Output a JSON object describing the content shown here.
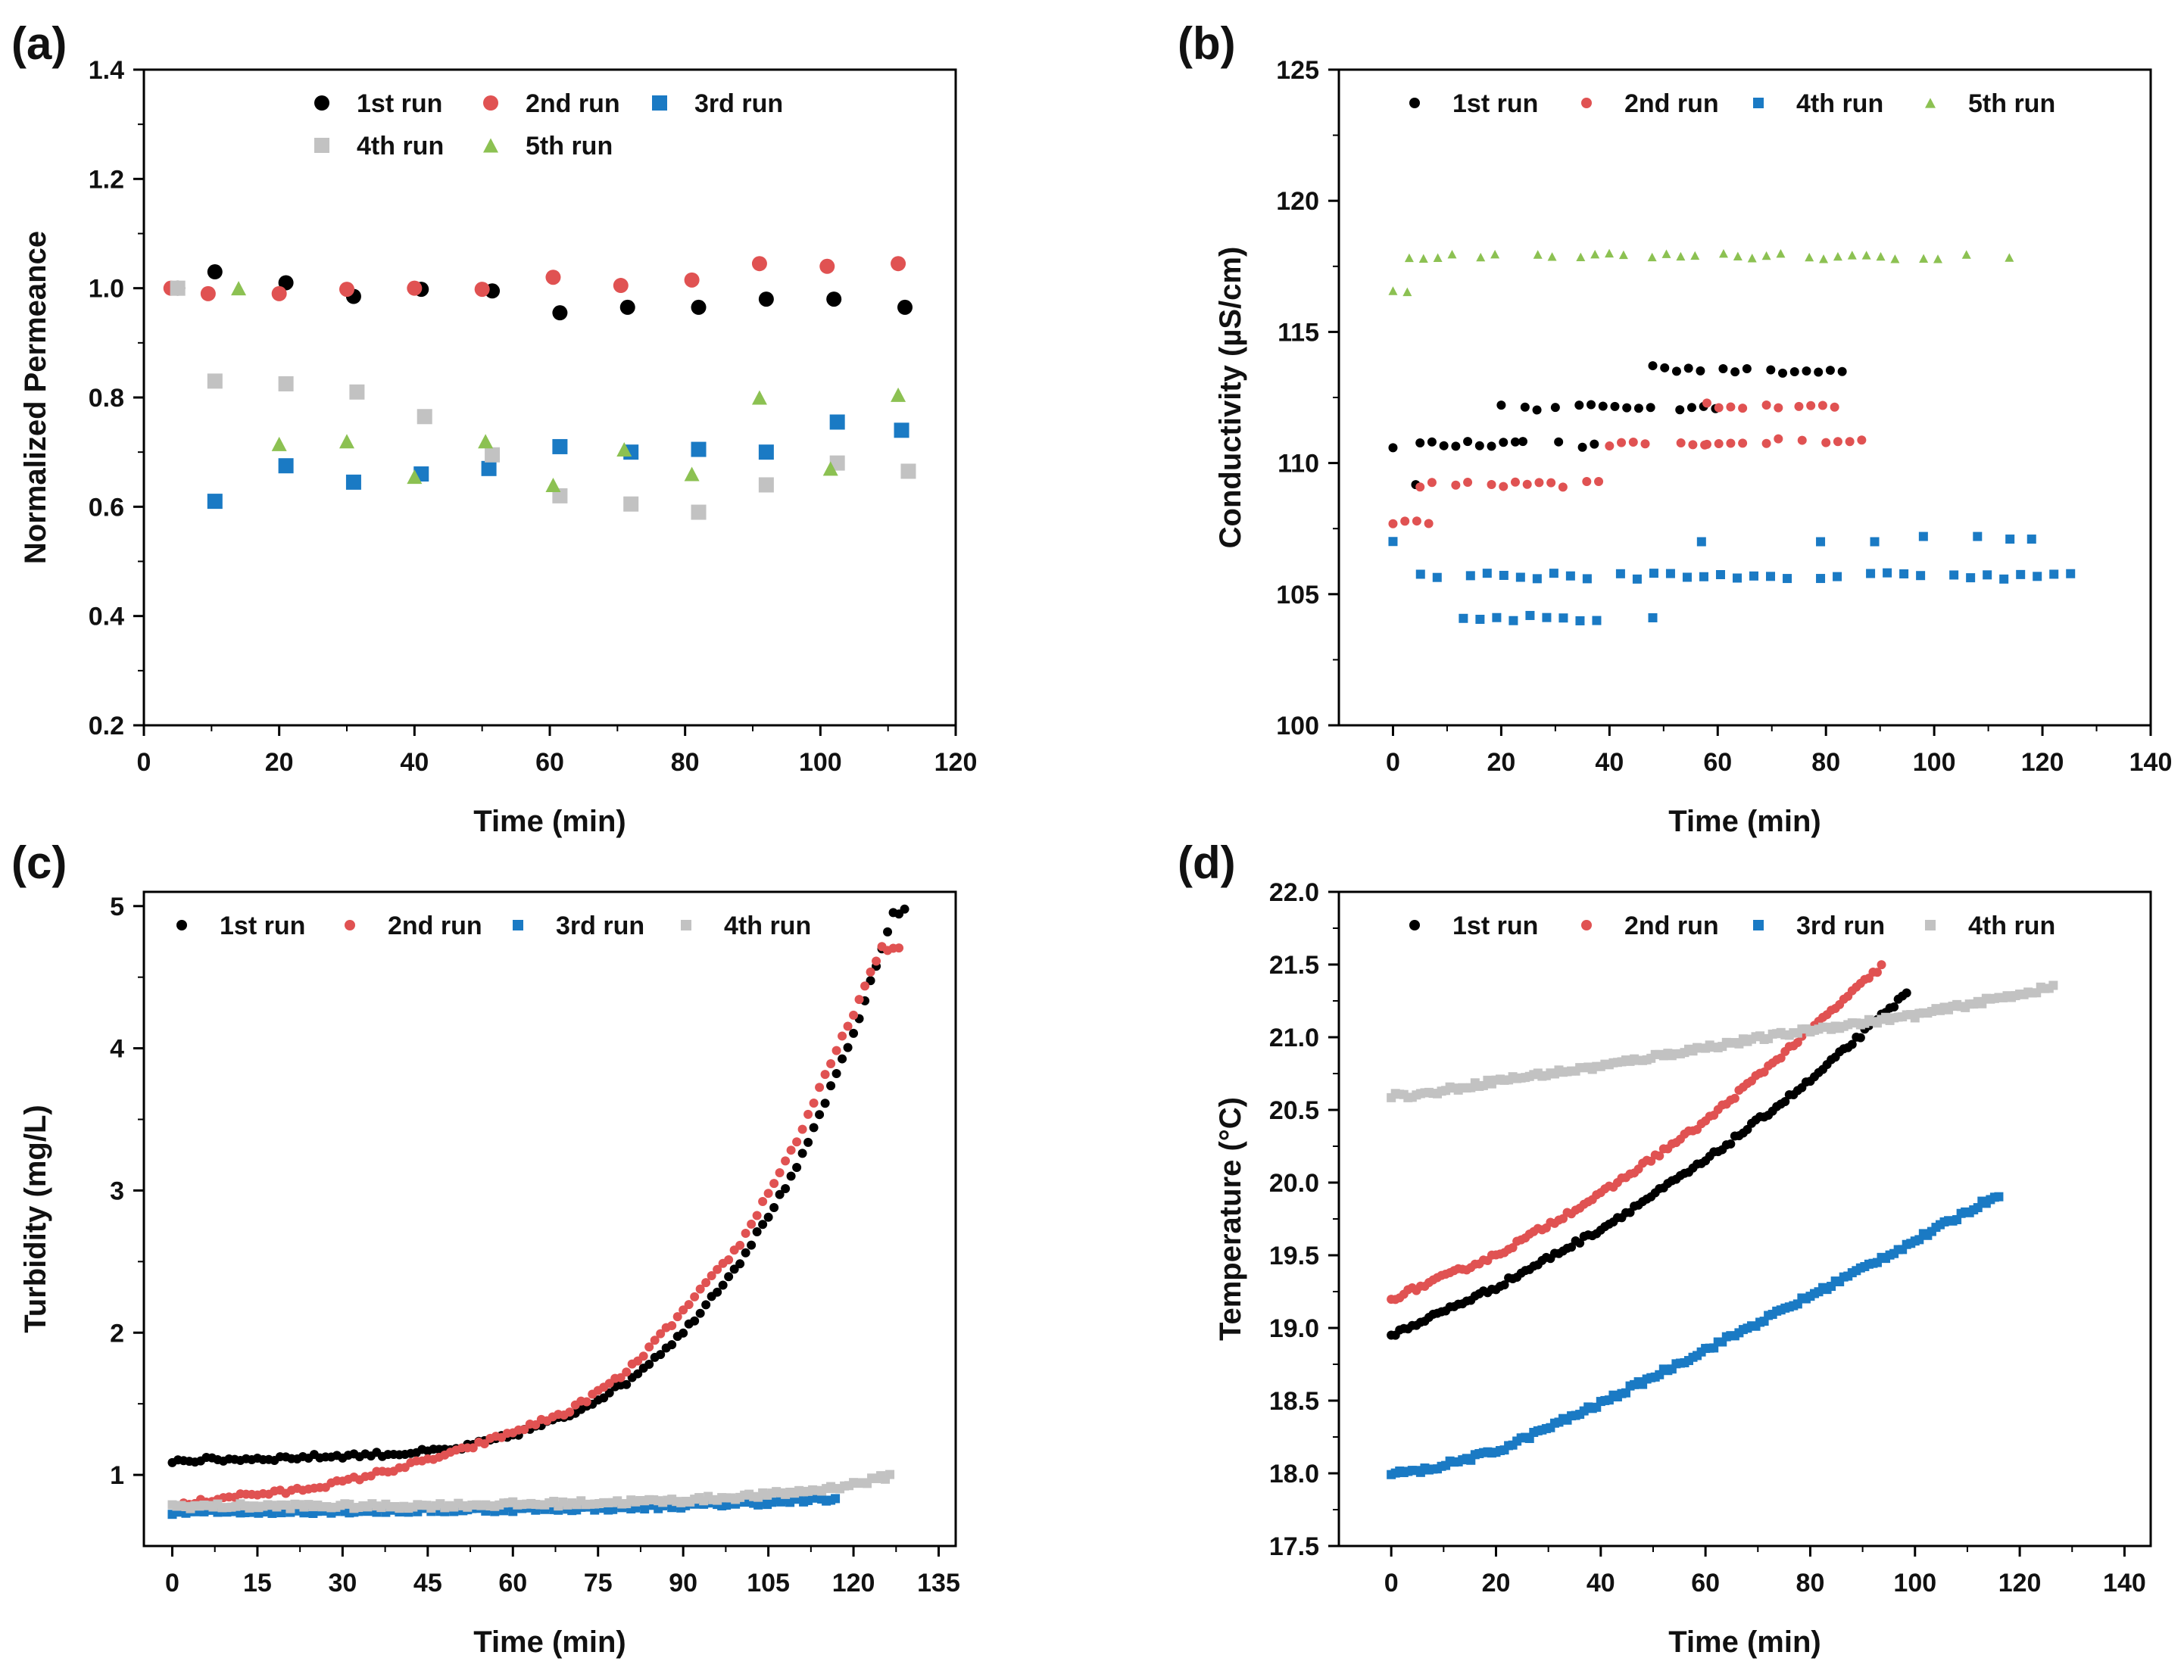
{
  "colors": {
    "black": "#000000",
    "red": "#e05252",
    "blue": "#1a7ac4",
    "gray": "#c2c2c2",
    "green": "#8cc152"
  },
  "chart_data": [
    {
      "id": "a",
      "panel_label": "(a)",
      "type": "scatter",
      "xlabel": "Time (min)",
      "ylabel": "Normalized Permeance",
      "xlim": [
        0,
        120
      ],
      "ylim": [
        0.2,
        1.4
      ],
      "xticks": [
        0,
        20,
        40,
        60,
        80,
        100,
        120
      ],
      "yticks": [
        0.2,
        0.4,
        0.6,
        0.8,
        1.0,
        1.2,
        1.4
      ],
      "ytick_labels": [
        "0.2",
        "0.4",
        "0.6",
        "0.8",
        "1.0",
        "1.2",
        "1.4"
      ],
      "legend": {
        "placement": "top-center",
        "columns": 3
      },
      "series": [
        {
          "name": "1st run",
          "color": "#000000",
          "marker": "circle",
          "x": [
            5,
            10.5,
            21,
            31,
            41,
            51.5,
            61.5,
            71.5,
            82,
            92,
            102,
            112.5
          ],
          "y": [
            1.0,
            1.03,
            1.01,
            0.985,
            0.998,
            0.995,
            0.955,
            0.965,
            0.965,
            0.98,
            0.98,
            0.965
          ]
        },
        {
          "name": "2nd run",
          "color": "#e05252",
          "marker": "circle",
          "x": [
            4,
            9.5,
            20,
            30,
            40,
            50,
            60.5,
            70.5,
            81,
            91,
            101,
            111.5
          ],
          "y": [
            1.0,
            0.99,
            0.99,
            0.998,
            1.0,
            0.998,
            1.02,
            1.005,
            1.015,
            1.045,
            1.04,
            1.045
          ]
        },
        {
          "name": "3rd run",
          "color": "#1a7ac4",
          "marker": "square",
          "x": [
            10.5,
            21,
            31,
            41,
            51,
            61.5,
            72,
            82,
            92,
            102.5,
            112
          ],
          "y": [
            0.61,
            0.675,
            0.645,
            0.66,
            0.67,
            0.71,
            0.7,
            0.705,
            0.7,
            0.755,
            0.74
          ]
        },
        {
          "name": "4th run",
          "color": "#c2c2c2",
          "marker": "square",
          "x": [
            5,
            10.5,
            21,
            31.5,
            41.5,
            51.5,
            61.5,
            72,
            82,
            92,
            102.5,
            113
          ],
          "y": [
            1.0,
            0.83,
            0.825,
            0.81,
            0.765,
            0.695,
            0.62,
            0.605,
            0.59,
            0.64,
            0.68,
            0.665
          ]
        },
        {
          "name": "5th run",
          "color": "#8cc152",
          "marker": "triangle",
          "x": [
            14,
            20,
            30,
            40,
            50.5,
            60.5,
            71,
            81,
            91,
            101.5,
            111.5
          ],
          "y": [
            1.0,
            0.715,
            0.72,
            0.655,
            0.72,
            0.64,
            0.705,
            0.66,
            0.8,
            0.67,
            0.805
          ]
        }
      ]
    },
    {
      "id": "b",
      "panel_label": "(b)",
      "type": "scatter",
      "xlabel": "Time (min)",
      "ylabel": "Conductivity (µS/cm)",
      "xlim": [
        -10,
        140
      ],
      "ylim": [
        100,
        125
      ],
      "xticks": [
        0,
        20,
        40,
        60,
        80,
        100,
        120,
        140
      ],
      "yticks": [
        100,
        105,
        110,
        115,
        120,
        125
      ],
      "ytick_labels": [
        "100",
        "105",
        "110",
        "115",
        "120",
        "125"
      ],
      "legend": {
        "placement": "top-center",
        "columns": 4
      },
      "series": [
        {
          "name": "1st run",
          "color": "#000000",
          "marker": "circle",
          "generator": "segments",
          "segments": [
            [
              0,
              2,
              110.5
            ],
            [
              2,
              5,
              109.3
            ],
            [
              5,
              24,
              110.7
            ],
            [
              20,
              30,
              112.1
            ],
            [
              24,
              38,
              110.7
            ],
            [
              30,
              48,
              112.2
            ],
            [
              48,
              58,
              113.6
            ],
            [
              53,
              61,
              112.1
            ],
            [
              61,
              85,
              113.5
            ]
          ],
          "step": 1.0
        },
        {
          "name": "2nd run",
          "color": "#e05252",
          "marker": "circle",
          "generator": "segments",
          "segments": [
            [
              0,
              7,
              107.8
            ],
            [
              5,
              40,
              109.2
            ],
            [
              40,
              58,
              110.7
            ],
            [
              58,
              72,
              112.2
            ],
            [
              58,
              87,
              110.8
            ],
            [
              75,
              82,
              112.1
            ]
          ],
          "step": 1.0
        },
        {
          "name": "4th run",
          "color": "#1a7ac4",
          "marker": "square",
          "generator": "segments",
          "segments": [
            [
              0,
              3,
              107.0
            ],
            [
              2,
              127,
              105.7
            ],
            [
              13,
              40,
              104.1
            ]
          ],
          "step": 1.4,
          "extra": [
            [
              48,
              104.1
            ],
            [
              57,
              107.0
            ],
            [
              79,
              107.0
            ],
            [
              89,
              107.0
            ],
            [
              98,
              107.2
            ],
            [
              108,
              107.2
            ],
            [
              114,
              107.1
            ],
            [
              118,
              107.1
            ]
          ]
        },
        {
          "name": "5th run",
          "color": "#8cc152",
          "marker": "triangle",
          "generator": "segments",
          "segments": [
            [
              0,
              3,
              116.5
            ],
            [
              3,
              114,
              117.9
            ]
          ],
          "step": 1.2
        }
      ]
    },
    {
      "id": "c",
      "panel_label": "(c)",
      "type": "scatter",
      "xlabel": "Time (min)",
      "ylabel": "Turbidity (mg/L)",
      "xlim": [
        -5,
        138
      ],
      "ylim": [
        0.5,
        5.1
      ],
      "xticks": [
        0,
        15,
        30,
        45,
        60,
        75,
        90,
        105,
        120,
        135
      ],
      "yticks": [
        1,
        2,
        3,
        4,
        5
      ],
      "ytick_labels": [
        "1",
        "2",
        "3",
        "4",
        "5"
      ],
      "legend": {
        "placement": "top-center",
        "columns": 4
      },
      "series": [
        {
          "name": "1st run",
          "color": "#000000",
          "marker": "circle",
          "generator": "curve",
          "x_range": [
            0,
            129
          ],
          "step": 1.0,
          "anchors": [
            [
              0,
              1.1
            ],
            [
              20,
              1.12
            ],
            [
              40,
              1.15
            ],
            [
              50,
              1.18
            ],
            [
              60,
              1.28
            ],
            [
              70,
              1.42
            ],
            [
              80,
              1.65
            ],
            [
              90,
              2.0
            ],
            [
              100,
              2.5
            ],
            [
              110,
              3.15
            ],
            [
              120,
              4.1
            ],
            [
              125,
              4.7
            ],
            [
              127,
              4.95
            ],
            [
              129,
              4.97
            ]
          ]
        },
        {
          "name": "2nd run",
          "color": "#e05252",
          "marker": "circle",
          "generator": "curve",
          "x_range": [
            1,
            128
          ],
          "step": 1.0,
          "anchors": [
            [
              1,
              0.78
            ],
            [
              10,
              0.85
            ],
            [
              20,
              0.88
            ],
            [
              30,
              0.95
            ],
            [
              40,
              1.05
            ],
            [
              50,
              1.16
            ],
            [
              60,
              1.3
            ],
            [
              70,
              1.45
            ],
            [
              80,
              1.72
            ],
            [
              90,
              2.15
            ],
            [
              100,
              2.62
            ],
            [
              110,
              3.35
            ],
            [
              120,
              4.25
            ],
            [
              125,
              4.7
            ],
            [
              128,
              4.7
            ]
          ]
        },
        {
          "name": "3rd run",
          "color": "#1a7ac4",
          "marker": "square",
          "generator": "curve",
          "x_range": [
            0,
            117
          ],
          "step": 0.8,
          "anchors": [
            [
              0,
              0.74
            ],
            [
              40,
              0.75
            ],
            [
              80,
              0.77
            ],
            [
              100,
              0.8
            ],
            [
              117,
              0.83
            ]
          ]
        },
        {
          "name": "4th run",
          "color": "#c2c2c2",
          "marker": "square",
          "generator": "curve",
          "x_range": [
            0,
            127
          ],
          "step": 0.8,
          "anchors": [
            [
              0,
              0.78
            ],
            [
              40,
              0.78
            ],
            [
              70,
              0.8
            ],
            [
              90,
              0.82
            ],
            [
              105,
              0.86
            ],
            [
              115,
              0.9
            ],
            [
              122,
              0.95
            ],
            [
              127,
              1.0
            ]
          ]
        }
      ]
    },
    {
      "id": "d",
      "panel_label": "(d)",
      "type": "scatter",
      "xlabel": "Time (min)",
      "ylabel": "Temperature (°C)",
      "xlim": [
        -10,
        145
      ],
      "ylim": [
        17.5,
        22.0
      ],
      "xticks": [
        0,
        20,
        40,
        60,
        80,
        100,
        120,
        140
      ],
      "yticks": [
        17.5,
        18.0,
        18.5,
        19.0,
        19.5,
        20.0,
        20.5,
        21.0,
        21.5,
        22.0
      ],
      "ytick_labels": [
        "17.5",
        "18.0",
        "18.5",
        "19.0",
        "19.5",
        "20.0",
        "20.5",
        "21.0",
        "21.5",
        "22.0"
      ],
      "legend": {
        "placement": "top-center",
        "columns": 4
      },
      "series": [
        {
          "name": "1st run",
          "color": "#000000",
          "marker": "circle",
          "generator": "curve",
          "x_range": [
            0,
            99
          ],
          "step": 0.8,
          "anchors": [
            [
              0,
              18.95
            ],
            [
              20,
              19.28
            ],
            [
              40,
              19.68
            ],
            [
              60,
              20.15
            ],
            [
              80,
              20.7
            ],
            [
              99,
              21.32
            ]
          ]
        },
        {
          "name": "2nd run",
          "color": "#e05252",
          "marker": "circle",
          "generator": "curve",
          "x_range": [
            0,
            94
          ],
          "step": 0.8,
          "anchors": [
            [
              0,
              19.2
            ],
            [
              20,
              19.5
            ],
            [
              40,
              19.92
            ],
            [
              60,
              20.42
            ],
            [
              80,
              21.05
            ],
            [
              94,
              21.5
            ]
          ]
        },
        {
          "name": "3rd run",
          "color": "#1a7ac4",
          "marker": "square",
          "generator": "curve",
          "x_range": [
            0,
            116
          ],
          "step": 0.8,
          "anchors": [
            [
              0,
              18.0
            ],
            [
              5,
              18.01
            ],
            [
              20,
              18.15
            ],
            [
              40,
              18.48
            ],
            [
              60,
              18.85
            ],
            [
              80,
              19.22
            ],
            [
              100,
              19.6
            ],
            [
              116,
              19.92
            ]
          ]
        },
        {
          "name": "4th run",
          "color": "#c2c2c2",
          "marker": "square",
          "generator": "curve",
          "x_range": [
            0,
            127
          ],
          "step": 0.8,
          "anchors": [
            [
              0,
              20.6
            ],
            [
              5,
              20.6
            ],
            [
              20,
              20.7
            ],
            [
              40,
              20.8
            ],
            [
              60,
              20.93
            ],
            [
              80,
              21.05
            ],
            [
              100,
              21.15
            ],
            [
              127,
              21.35
            ]
          ]
        }
      ]
    }
  ]
}
